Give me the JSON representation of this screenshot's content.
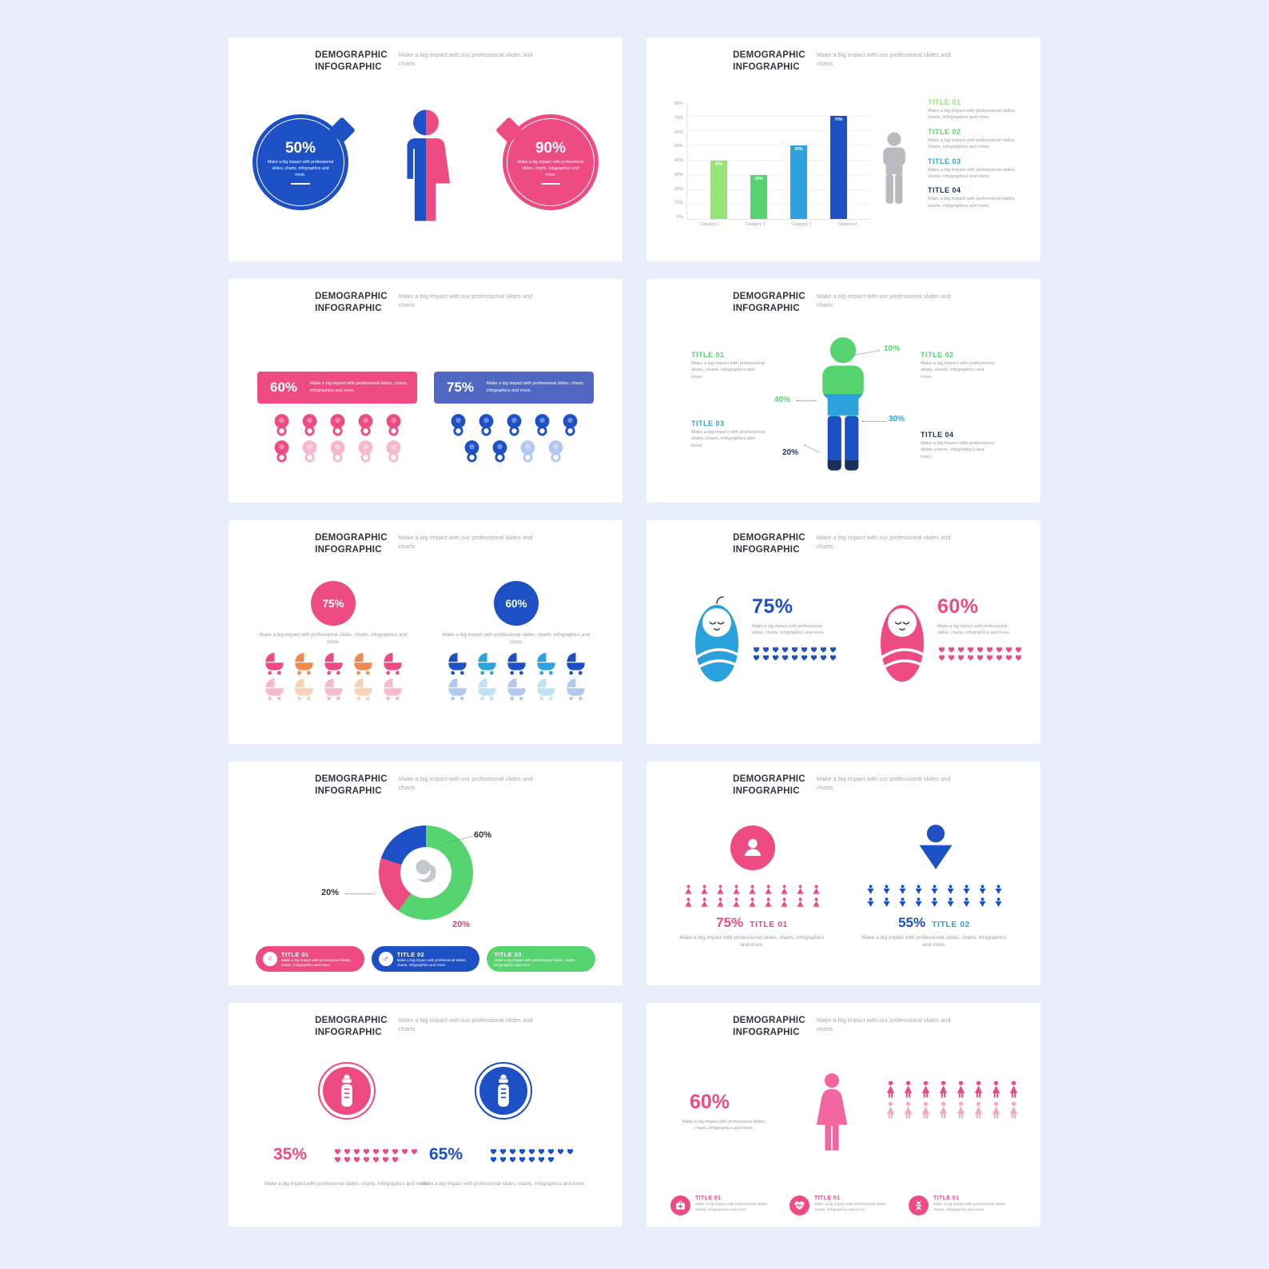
{
  "page": {
    "background": "#e7eef9",
    "card_background": "#ffffff"
  },
  "common": {
    "title1": "DEMOGRAPHIC",
    "title2": "INFOGRAPHIC",
    "tagline": "Make a big impact with our professional slides and charts",
    "body": "Make a big impact with professional slides, charts, infographics and more."
  },
  "colors": {
    "pink": "#ee4b83",
    "pink_light": "#f8b8cd",
    "blue": "#1d50c5",
    "blue_mid": "#5068c2",
    "blue_light": "#2ea2dd",
    "green": "#56d470",
    "green_light": "#97e476",
    "navy": "#16325c",
    "orange": "#f28a4f",
    "gray_icon": "#b9b9bf",
    "text_dark": "#33333d",
    "text_gray": "#9b9ba6"
  },
  "s1": {
    "left_pct": "50%",
    "right_pct": "90%",
    "left_color": "#1d50c5",
    "right_color": "#ee4b83"
  },
  "s2": {
    "chart_data": {
      "type": "bar",
      "categories": [
        "Category 1",
        "Category 2",
        "Category 3",
        "Category 4"
      ],
      "values": [
        40,
        30,
        50,
        70
      ],
      "bar_labels": [
        "40%",
        "30%",
        "50%",
        "70%"
      ],
      "colors": [
        "#97e476",
        "#56d470",
        "#2ea2dd",
        "#1d50c5"
      ],
      "ylim": [
        0,
        80
      ],
      "yticks": [
        "80%",
        "70%",
        "60%",
        "50%",
        "40%",
        "30%",
        "20%",
        "10%",
        "0%"
      ],
      "grid": true
    },
    "titles": [
      {
        "label": "TITLE 01",
        "color": "#97e476"
      },
      {
        "label": "TITLE 02",
        "color": "#56d470"
      },
      {
        "label": "TITLE 03",
        "color": "#2ea2dd"
      },
      {
        "label": "TITLE 04",
        "color": "#16325c"
      }
    ]
  },
  "s3": {
    "left": {
      "pct": "60%",
      "color": "#ee4b83"
    },
    "right": {
      "pct": "75%",
      "color": "#5068c2"
    },
    "left_icons": {
      "icon": "pacifier",
      "groups": [
        {
          "c": "#ee4b83",
          "n": 6
        },
        {
          "c": "#f8b8cd",
          "n": 4
        }
      ]
    },
    "right_icons": {
      "icon": "pacifier",
      "groups": [
        {
          "c": "#1d50c5",
          "n": 7
        },
        {
          "c": "#b3c8ef",
          "n": 2
        }
      ]
    }
  },
  "s4": {
    "callouts": [
      {
        "pct": "10%",
        "color": "#56d470"
      },
      {
        "pct": "40%",
        "color": "#56d470"
      },
      {
        "pct": "30%",
        "color": "#2ea2dd"
      },
      {
        "pct": "20%",
        "color": "#16325c"
      }
    ],
    "titles": [
      {
        "label": "TITLE 01",
        "color": "#56d470"
      },
      {
        "label": "TITLE 02",
        "color": "#56d470"
      },
      {
        "label": "TITLE 03",
        "color": "#2ea2dd"
      },
      {
        "label": "TITLE 04",
        "color": "#16325c"
      }
    ]
  },
  "s5": {
    "left": {
      "pct": "75%",
      "color": "#ee4b83"
    },
    "right": {
      "pct": "60%",
      "color": "#1d50c5"
    },
    "left_icons": {
      "icon": "stroller",
      "groups": [
        {
          "c": "#ee4b83",
          "n": 1
        },
        {
          "c": "#f28a4f",
          "n": 1
        },
        {
          "c": "#ee4b83",
          "n": 1
        },
        {
          "c": "#f28a4f",
          "n": 1
        },
        {
          "c": "#ee4b83",
          "n": 1
        },
        {
          "c": "#f8b8cd",
          "n": 1
        },
        {
          "c": "#f9d2b8",
          "n": 1
        },
        {
          "c": "#f8b8cd",
          "n": 1
        },
        {
          "c": "#f9d2b8",
          "n": 1
        },
        {
          "c": "#f8b8cd",
          "n": 1
        }
      ]
    },
    "right_icons": {
      "icon": "stroller",
      "groups": [
        {
          "c": "#1d50c5",
          "n": 1
        },
        {
          "c": "#2ea2dd",
          "n": 1
        },
        {
          "c": "#1d50c5",
          "n": 1
        },
        {
          "c": "#2ea2dd",
          "n": 1
        },
        {
          "c": "#1d50c5",
          "n": 1
        },
        {
          "c": "#b3c8ef",
          "n": 1
        },
        {
          "c": "#bfe2f5",
          "n": 1
        },
        {
          "c": "#b3c8ef",
          "n": 1
        },
        {
          "c": "#bfe2f5",
          "n": 1
        },
        {
          "c": "#b3c8ef",
          "n": 1
        }
      ]
    }
  },
  "s6": {
    "left": {
      "pct": "75%",
      "pct_color": "#1d50c5",
      "baby_color": "#2ba1dc",
      "hearts": {
        "icon": "heart",
        "groups": [
          {
            "c": "#1d50c5",
            "n": 18
          }
        ]
      }
    },
    "right": {
      "pct": "60%",
      "pct_color": "#ee4b83",
      "baby_color": "#ee4b83",
      "hearts": {
        "icon": "heart",
        "groups": [
          {
            "c": "#ee4b83",
            "n": 18
          }
        ]
      }
    }
  },
  "s7": {
    "chart_data": {
      "type": "donut",
      "segments": [
        {
          "label": "60%",
          "value": 60,
          "color": "#56d470"
        },
        {
          "label": "20%",
          "value": 20,
          "color": "#ee4b83"
        },
        {
          "label": "20%",
          "value": 20,
          "color": "#1d50c5"
        }
      ]
    },
    "labels": {
      "top": {
        "text": "60%",
        "color": "#33333d"
      },
      "left": {
        "text": "20%",
        "color": "#33333d"
      },
      "bottom": {
        "text": "20%",
        "color": "#d8437e"
      }
    },
    "legend": [
      {
        "label": "TITLE 01",
        "color": "#ee4b83",
        "symbol": "♀"
      },
      {
        "label": "TITLE 02",
        "color": "#1d50c5",
        "symbol": "♂"
      },
      {
        "label": "TITLE 03",
        "color": "#56d470",
        "symbol": ""
      }
    ]
  },
  "s8": {
    "left": {
      "pct": "75%",
      "title": "TITLE 01",
      "pct_color": "#ee4b83",
      "title_color": "#ee4b83",
      "circle_color": "#ee4b83",
      "icons": {
        "icon": "woman-tri",
        "groups": [
          {
            "c": "#ee4b83",
            "n": 18
          }
        ]
      }
    },
    "right": {
      "pct": "55%",
      "title": "TITLE 02",
      "pct_color": "#1d50c5",
      "title_color": "#2ea2dd",
      "icons": {
        "icon": "person-down",
        "groups": [
          {
            "c": "#1d50c5",
            "n": 18
          }
        ]
      }
    }
  },
  "s9": {
    "left": {
      "pct": "35%",
      "color": "#ee4b83",
      "hearts": {
        "icon": "heart",
        "groups": [
          {
            "c": "#ee4b83",
            "n": 16
          }
        ]
      }
    },
    "right": {
      "pct": "65%",
      "color": "#1d50c5",
      "hearts": {
        "icon": "heart",
        "groups": [
          {
            "c": "#1d50c5",
            "n": 16
          }
        ]
      }
    }
  },
  "s10": {
    "pct": "60%",
    "pct_color": "#ee4b83",
    "woman_color": "#f2679f",
    "icons": {
      "icon": "woman-fig",
      "groups": [
        {
          "c": "#ee4b83",
          "n": 8
        },
        {
          "c": "#f6a8c6",
          "n": 8
        }
      ]
    },
    "items": [
      {
        "title": "TITLE 01",
        "color": "#ee4b83",
        "icon": "first-aid"
      },
      {
        "title": "TITLE 01",
        "color": "#ee4b83",
        "icon": "heart-pulse"
      },
      {
        "title": "TITLE 01",
        "color": "#ee4b83",
        "icon": "dna"
      }
    ]
  }
}
